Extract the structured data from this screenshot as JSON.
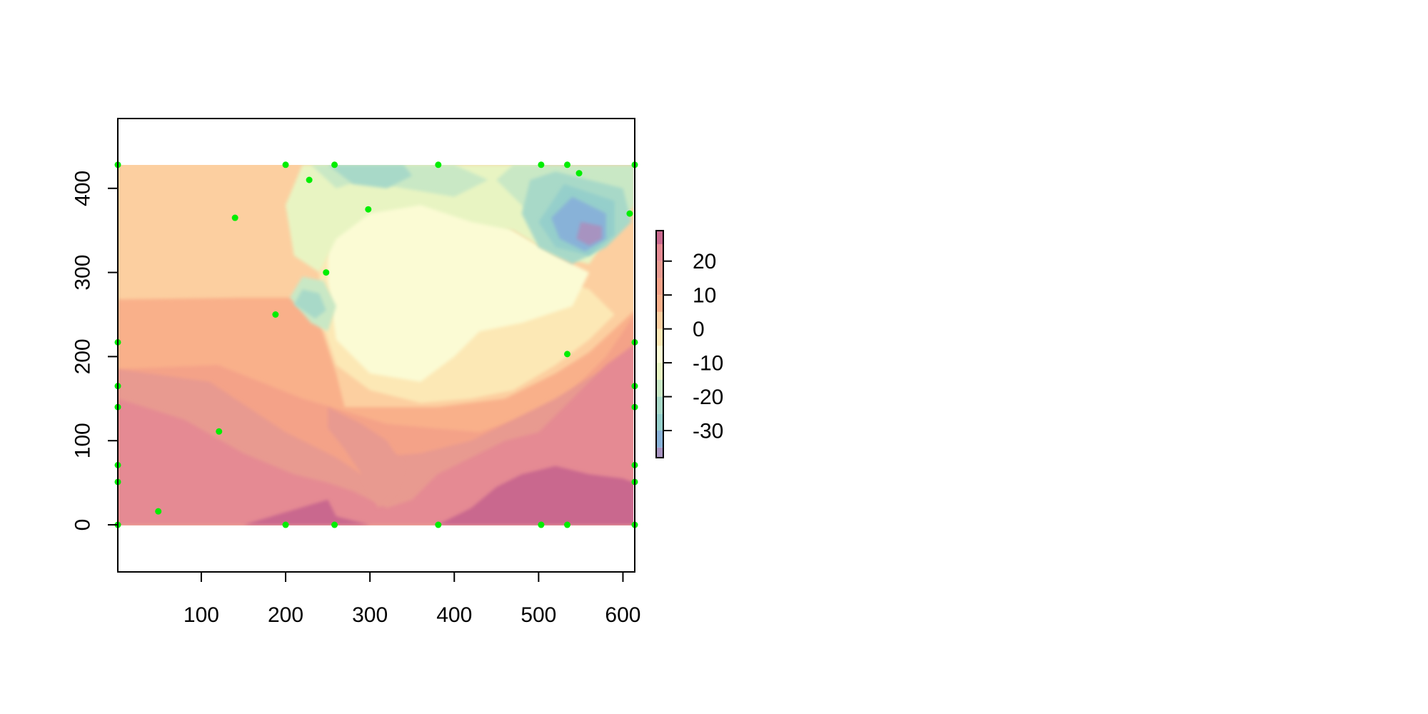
{
  "chart_data": {
    "type": "heatmap",
    "title": "",
    "xlabel": "",
    "ylabel": "",
    "xlim": [
      1,
      614
    ],
    "ylim": [
      -56,
      483
    ],
    "raster_extent": {
      "x": [
        1,
        614
      ],
      "y": [
        0,
        428
      ]
    },
    "x_ticks": [
      100,
      200,
      300,
      400,
      500,
      600
    ],
    "x_tick_labels": [
      "100",
      "200",
      "300",
      "400",
      "500",
      "600"
    ],
    "y_ticks": [
      0,
      100,
      200,
      300,
      400
    ],
    "y_tick_labels": [
      "0",
      "100",
      "200",
      "300",
      "400"
    ],
    "grid": false,
    "colorbar": {
      "placement": "right",
      "range": [
        -38,
        29
      ],
      "ticks": [
        20,
        10,
        0,
        -10,
        -20,
        -30
      ],
      "tick_labels": [
        "20",
        "10",
        "0",
        "-10",
        "-20",
        "-30"
      ],
      "bins": [
        {
          "from": -38,
          "to": -35,
          "color": "#a793c0"
        },
        {
          "from": -35,
          "to": -30,
          "color": "#88b2d8"
        },
        {
          "from": -30,
          "to": -25,
          "color": "#95cfcb"
        },
        {
          "from": -25,
          "to": -20,
          "color": "#a8d9c8"
        },
        {
          "from": -20,
          "to": -15,
          "color": "#c9e8c5"
        },
        {
          "from": -15,
          "to": -10,
          "color": "#e8f4c2"
        },
        {
          "from": -10,
          "to": -5,
          "color": "#fbfbd4"
        },
        {
          "from": -5,
          "to": 0,
          "color": "#fce8b5"
        },
        {
          "from": 0,
          "to": 5,
          "color": "#fccfa0"
        },
        {
          "from": 5,
          "to": 10,
          "color": "#f9b08a"
        },
        {
          "from": 10,
          "to": 15,
          "color": "#f4a288"
        },
        {
          "from": 15,
          "to": 20,
          "color": "#e89a90"
        },
        {
          "from": 20,
          "to": 25,
          "color": "#e58a93"
        },
        {
          "from": 25,
          "to": 29,
          "color": "#c9688e"
        }
      ]
    },
    "points": {
      "color": "#00ee00",
      "xy": [
        [
          1,
          428
        ],
        [
          200,
          428
        ],
        [
          258,
          428
        ],
        [
          381,
          428
        ],
        [
          503,
          428
        ],
        [
          534,
          428
        ],
        [
          614,
          428
        ],
        [
          228,
          410
        ],
        [
          548,
          418
        ],
        [
          298,
          375
        ],
        [
          140,
          365
        ],
        [
          608,
          370
        ],
        [
          248,
          300
        ],
        [
          188,
          250
        ],
        [
          1,
          217
        ],
        [
          614,
          217
        ],
        [
          534,
          203
        ],
        [
          1,
          165
        ],
        [
          614,
          165
        ],
        [
          1,
          140
        ],
        [
          614,
          140
        ],
        [
          121,
          111
        ],
        [
          1,
          71
        ],
        [
          614,
          71
        ],
        [
          1,
          51
        ],
        [
          614,
          51
        ],
        [
          49,
          16
        ],
        [
          1,
          0
        ],
        [
          200,
          0
        ],
        [
          258,
          0
        ],
        [
          381,
          0
        ],
        [
          503,
          0
        ],
        [
          534,
          0
        ],
        [
          614,
          0
        ]
      ]
    }
  }
}
